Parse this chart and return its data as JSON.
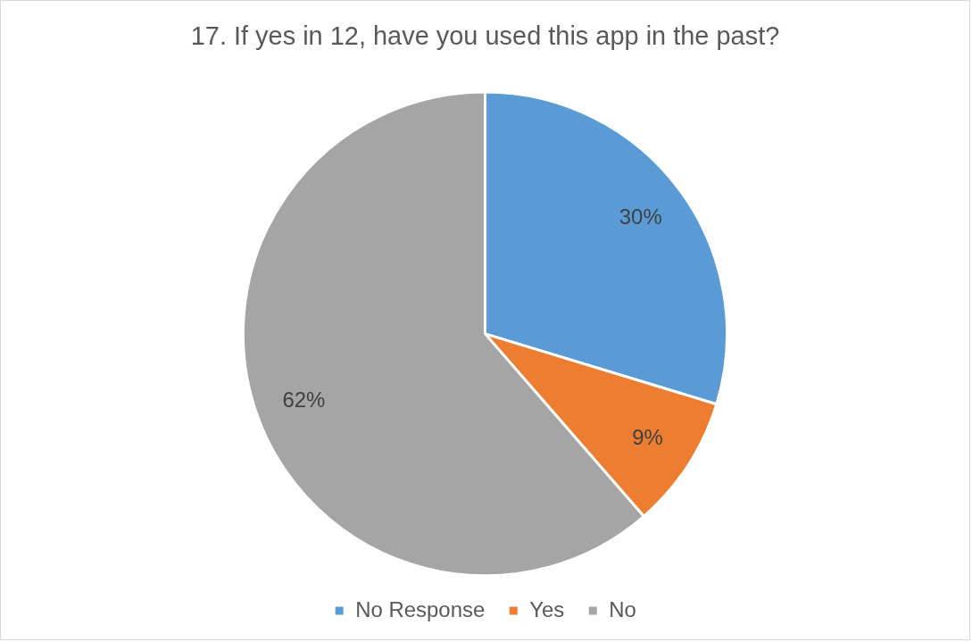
{
  "chart_data": {
    "type": "pie",
    "title": "17. If yes in 12, have you used this app in the past?",
    "categories": [
      "No Response",
      "Yes",
      "No"
    ],
    "values": [
      30,
      9,
      62
    ],
    "colors": [
      "#5b9bd5",
      "#ed7d31",
      "#a5a5a5"
    ],
    "value_labels": [
      "30%",
      "9%",
      "62%"
    ],
    "legend": "bottom"
  }
}
